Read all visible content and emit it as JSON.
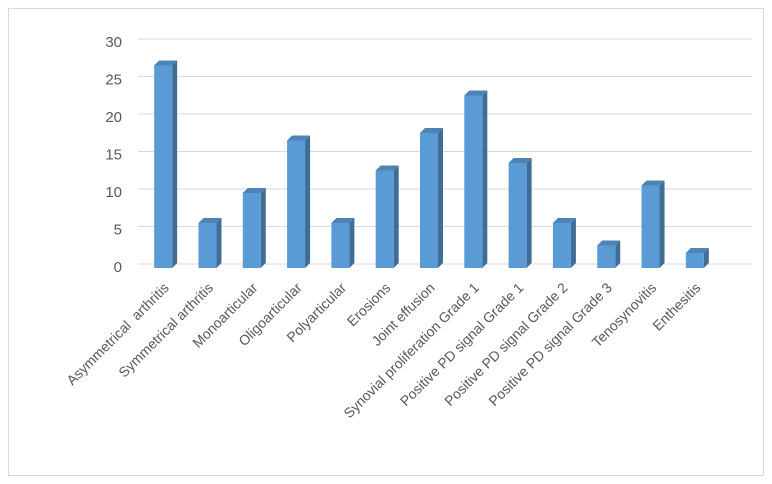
{
  "chart_data": {
    "type": "bar",
    "categories": [
      "Asymmetrical  arthritis",
      "Symmetrical arthritis",
      "Monoarticular",
      "Oligoarticular",
      "Polyarticular",
      "Erosions",
      "Joint effusion",
      "Synovial proliferation Grade 1",
      "Positive PD signal Grade 1",
      "Positive PD signal Grade 2",
      "Positive PD signal Grade 3",
      "Tenosynovitis",
      "Enthesitis"
    ],
    "values": [
      27,
      6,
      10,
      17,
      6,
      13,
      18,
      23,
      14,
      6,
      3,
      11,
      2
    ],
    "color": "#5b9bd5",
    "ylim": [
      0,
      30
    ],
    "yticks": [
      0,
      5,
      10,
      15,
      20,
      25,
      30
    ],
    "grid": true
  }
}
